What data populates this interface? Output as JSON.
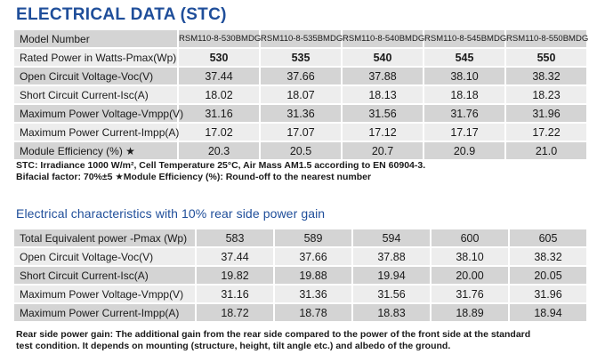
{
  "stc": {
    "title": "ELECTRICAL DATA (STC)",
    "header": {
      "label": "Model Number",
      "models": [
        "RSM110-8-530BMDG",
        "RSM110-8-535BMDG",
        "RSM110-8-540BMDG",
        "RSM110-8-545BMDG",
        "RSM110-8-550BMDG"
      ]
    },
    "rows": [
      {
        "label": "Rated Power in Watts-Pmax(Wp)",
        "values": [
          "530",
          "535",
          "540",
          "545",
          "550"
        ]
      },
      {
        "label": "Open Circuit Voltage-Voc(V)",
        "values": [
          "37.44",
          "37.66",
          "37.88",
          "38.10",
          "38.32"
        ]
      },
      {
        "label": "Short Circuit Current-Isc(A)",
        "values": [
          "18.02",
          "18.07",
          "18.13",
          "18.18",
          "18.23"
        ]
      },
      {
        "label": "Maximum Power Voltage-Vmpp(V)",
        "values": [
          "31.16",
          "31.36",
          "31.56",
          "31.76",
          "31.96"
        ]
      },
      {
        "label": "Maximum Power Current-Impp(A)",
        "values": [
          "17.02",
          "17.07",
          "17.12",
          "17.17",
          "17.22"
        ]
      },
      {
        "label": "Module Efficiency (%) ★",
        "values": [
          "20.3",
          "20.5",
          "20.7",
          "20.9",
          "21.0"
        ]
      }
    ],
    "note_line1": "STC: Irradiance 1000 W/m², Cell Temperature 25°C, Air Mass AM1.5 according to EN 60904-3.",
    "note_line2": "Bifacial factor: 70%±5   ★Module Efficiency (%): Round-off to the nearest number"
  },
  "rear": {
    "title": "Electrical characteristics with 10% rear side power gain",
    "rows": [
      {
        "label": "Total Equivalent power -Pmax (Wp)",
        "values": [
          "583",
          "589",
          "594",
          "600",
          "605"
        ]
      },
      {
        "label": "Open Circuit Voltage-Voc(V)",
        "values": [
          "37.44",
          "37.66",
          "37.88",
          "38.10",
          "38.32"
        ]
      },
      {
        "label": "Short Circuit Current-Isc(A)",
        "values": [
          "19.82",
          "19.88",
          "19.94",
          "20.00",
          "20.05"
        ]
      },
      {
        "label": "Maximum Power Voltage-Vmpp(V)",
        "values": [
          "31.16",
          "31.36",
          "31.56",
          "31.76",
          "31.96"
        ]
      },
      {
        "label": "Maximum Power Current-Impp(A)",
        "values": [
          "18.72",
          "18.78",
          "18.83",
          "18.89",
          "18.94"
        ]
      }
    ],
    "note_line1": "Rear side power gain: The additional gain from the rear side compared to the power of the front side at the standard",
    "note_line2": "test condition. It depends on mounting (structure, height, tilt angle etc.) and albedo of the ground."
  }
}
